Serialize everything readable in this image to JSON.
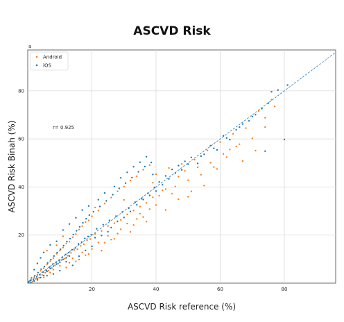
{
  "chart_data": {
    "type": "scatter",
    "title": "ASCVD Risk",
    "panel_label": "a",
    "xlabel": "ASCVD Risk reference (%)",
    "ylabel": "ASCVD Risk Binah (%)",
    "xlim": [
      0,
      96
    ],
    "ylim": [
      0,
      97
    ],
    "xticks": [
      20,
      40,
      60,
      80
    ],
    "yticks": [
      20,
      40,
      60,
      80
    ],
    "grid": true,
    "legend_position": "top-left",
    "annotation": "r= 0.925",
    "identity_line": true,
    "series": [
      {
        "name": "Android",
        "color": "#ff7f0e",
        "points": [
          [
            0.5,
            0.8
          ],
          [
            1,
            1.5
          ],
          [
            1.5,
            0.6
          ],
          [
            2,
            2.5
          ],
          [
            2.5,
            1.8
          ],
          [
            3,
            3.5
          ],
          [
            3.5,
            2.2
          ],
          [
            4,
            5.1
          ],
          [
            4.5,
            3.4
          ],
          [
            5,
            6.2
          ],
          [
            5.5,
            4.3
          ],
          [
            6,
            7.8
          ],
          [
            6.5,
            5.2
          ],
          [
            7,
            9.1
          ],
          [
            7.5,
            6.3
          ],
          [
            8,
            10.4
          ],
          [
            8.5,
            7.4
          ],
          [
            9,
            12.2
          ],
          [
            9.5,
            8.1
          ],
          [
            10,
            13.5
          ],
          [
            10.5,
            9.6
          ],
          [
            11,
            14.8
          ],
          [
            11.5,
            10.2
          ],
          [
            12,
            16.5
          ],
          [
            12.5,
            11.4
          ],
          [
            13,
            17.2
          ],
          [
            13.5,
            12.6
          ],
          [
            14,
            19.1
          ],
          [
            14.5,
            13.8
          ],
          [
            15,
            20.4
          ],
          [
            15.5,
            14.1
          ],
          [
            16,
            22.3
          ],
          [
            16.5,
            15.5
          ],
          [
            17,
            23.7
          ],
          [
            17.5,
            16.2
          ],
          [
            18,
            25.4
          ],
          [
            18.5,
            17.8
          ],
          [
            19,
            26.1
          ],
          [
            19.5,
            18.3
          ],
          [
            20,
            27.8
          ],
          [
            21,
            20.5
          ],
          [
            22,
            30.2
          ],
          [
            23,
            21.7
          ],
          [
            24,
            33.1
          ],
          [
            25,
            23.8
          ],
          [
            26,
            35.6
          ],
          [
            27,
            24.9
          ],
          [
            28,
            38.2
          ],
          [
            29,
            26.3
          ],
          [
            30,
            40.1
          ],
          [
            31,
            28.6
          ],
          [
            32,
            42.7
          ],
          [
            33,
            30.2
          ],
          [
            34,
            44.5
          ],
          [
            35,
            31.8
          ],
          [
            36,
            47.2
          ],
          [
            37,
            33.4
          ],
          [
            38,
            49.1
          ],
          [
            39,
            35.7
          ],
          [
            40,
            45.3
          ],
          [
            42,
            38.6
          ],
          [
            44,
            47.9
          ],
          [
            46,
            40.2
          ],
          [
            48,
            49.6
          ],
          [
            50,
            42.8
          ],
          [
            52,
            51.4
          ],
          [
            54,
            45.1
          ],
          [
            56,
            55.2
          ],
          [
            58,
            48.3
          ],
          [
            60,
            58.7
          ],
          [
            62,
            52.4
          ],
          [
            64,
            62.1
          ],
          [
            66,
            57.8
          ],
          [
            68,
            64.5
          ],
          [
            70,
            60.2
          ],
          [
            72,
            71.6
          ],
          [
            74,
            64.9
          ],
          [
            76,
            76.3
          ],
          [
            77,
            73.5
          ],
          [
            6,
            13.5
          ],
          [
            9,
            15.8
          ],
          [
            11,
            19.5
          ],
          [
            13,
            8.5
          ],
          [
            16,
            9.8
          ],
          [
            19,
            12.1
          ],
          [
            21,
            31.5
          ],
          [
            24,
            16.8
          ],
          [
            27,
            18.4
          ],
          [
            30,
            34.6
          ],
          [
            33,
            24.2
          ],
          [
            36,
            27.5
          ],
          [
            39,
            41.8
          ],
          [
            43,
            30.4
          ],
          [
            47,
            34.9
          ],
          [
            51,
            38.2
          ],
          [
            55,
            40.6
          ],
          [
            59,
            47.5
          ],
          [
            63,
            55.6
          ],
          [
            67,
            50.8
          ],
          [
            71,
            55.1
          ],
          [
            3,
            1.2
          ],
          [
            5,
            2.4
          ],
          [
            7,
            4.3
          ],
          [
            8,
            5.6
          ],
          [
            10,
            7.2
          ],
          [
            12,
            6.5
          ],
          [
            14,
            10.3
          ],
          [
            15,
            9.1
          ],
          [
            17,
            12.8
          ],
          [
            18,
            11.6
          ],
          [
            20,
            14.2
          ],
          [
            22,
            16.9
          ],
          [
            23,
            13.5
          ],
          [
            25,
            19.7
          ],
          [
            26,
            18.1
          ],
          [
            28,
            20.6
          ],
          [
            29,
            22.4
          ],
          [
            31,
            24.8
          ],
          [
            32,
            21.3
          ],
          [
            34,
            26.7
          ],
          [
            35,
            28.9
          ],
          [
            37,
            25.6
          ],
          [
            38,
            30.8
          ],
          [
            40,
            32.5
          ],
          [
            41,
            36.4
          ],
          [
            43,
            39.1
          ],
          [
            45,
            37.2
          ],
          [
            47,
            44.3
          ],
          [
            49,
            46.7
          ],
          [
            50,
            35.9
          ],
          [
            53,
            48.2
          ],
          [
            57,
            50.1
          ],
          [
            61,
            53.7
          ],
          [
            65,
            56.9
          ],
          [
            74,
            68.8
          ]
        ]
      },
      {
        "name": "iOS",
        "color": "#1f77b4",
        "points": [
          [
            0.3,
            0.5
          ],
          [
            0.8,
            1.1
          ],
          [
            1.2,
            2.2
          ],
          [
            1.8,
            1.4
          ],
          [
            2.2,
            3.1
          ],
          [
            2.8,
            2.6
          ],
          [
            3.2,
            4.4
          ],
          [
            3.8,
            3.5
          ],
          [
            4.2,
            5.8
          ],
          [
            4.8,
            4.6
          ],
          [
            5.2,
            6.9
          ],
          [
            5.8,
            5.3
          ],
          [
            6.2,
            8.4
          ],
          [
            6.8,
            6.7
          ],
          [
            7.2,
            9.8
          ],
          [
            7.8,
            7.9
          ],
          [
            8.2,
            11.3
          ],
          [
            8.8,
            8.6
          ],
          [
            9.2,
            12.7
          ],
          [
            9.8,
            9.4
          ],
          [
            10.2,
            14.1
          ],
          [
            10.8,
            10.8
          ],
          [
            11.2,
            15.6
          ],
          [
            11.8,
            11.9
          ],
          [
            12.2,
            17.3
          ],
          [
            12.8,
            12.7
          ],
          [
            13.2,
            18.5
          ],
          [
            13.8,
            13.9
          ],
          [
            14.2,
            20.2
          ],
          [
            14.8,
            14.6
          ],
          [
            15.2,
            21.8
          ],
          [
            15.8,
            16.3
          ],
          [
            16.2,
            23.4
          ],
          [
            16.8,
            17.1
          ],
          [
            17.2,
            25.1
          ],
          [
            17.8,
            18.6
          ],
          [
            18.2,
            26.8
          ],
          [
            18.8,
            19.4
          ],
          [
            19.2,
            28.3
          ],
          [
            19.8,
            20.1
          ],
          [
            20.5,
            29.7
          ],
          [
            21.5,
            22.6
          ],
          [
            22.5,
            31.9
          ],
          [
            23.5,
            24.3
          ],
          [
            24.5,
            34.2
          ],
          [
            25.5,
            26.1
          ],
          [
            26.5,
            36.8
          ],
          [
            27.5,
            27.9
          ],
          [
            28.5,
            39.4
          ],
          [
            29.5,
            29.6
          ],
          [
            30.5,
            41.6
          ],
          [
            31.5,
            31.2
          ],
          [
            32.5,
            43.9
          ],
          [
            33.5,
            33.7
          ],
          [
            34.5,
            46.3
          ],
          [
            35.5,
            35.1
          ],
          [
            36.5,
            48.5
          ],
          [
            37.5,
            37.4
          ],
          [
            38.5,
            50.2
          ],
          [
            39.5,
            39.8
          ],
          [
            41,
            42.1
          ],
          [
            43,
            44.6
          ],
          [
            45,
            47.3
          ],
          [
            47,
            48.9
          ],
          [
            49,
            50.7
          ],
          [
            51,
            52.3
          ],
          [
            53,
            49.8
          ],
          [
            55,
            53.6
          ],
          [
            57,
            57.2
          ],
          [
            59,
            55.4
          ],
          [
            61,
            61.3
          ],
          [
            63,
            59.7
          ],
          [
            65,
            63.8
          ],
          [
            67,
            66.2
          ],
          [
            69,
            67.5
          ],
          [
            71,
            70.1
          ],
          [
            73,
            72.6
          ],
          [
            75,
            74.9
          ],
          [
            76,
            79.6
          ],
          [
            78,
            80.3
          ],
          [
            80,
            59.8
          ],
          [
            74,
            54.9
          ],
          [
            81,
            82.4
          ],
          [
            2,
            5.6
          ],
          [
            3,
            8.2
          ],
          [
            4,
            10.5
          ],
          [
            5,
            12.8
          ],
          [
            6,
            3.1
          ],
          [
            7,
            15.9
          ],
          [
            8,
            3.8
          ],
          [
            9,
            17.4
          ],
          [
            10,
            5.2
          ],
          [
            11,
            22.1
          ],
          [
            12,
            8.9
          ],
          [
            13,
            24.6
          ],
          [
            14,
            7.4
          ],
          [
            15,
            27.2
          ],
          [
            16,
            11.2
          ],
          [
            17,
            30.4
          ],
          [
            18,
            13.6
          ],
          [
            19,
            32.1
          ],
          [
            20,
            15.3
          ],
          [
            21,
            18.9
          ],
          [
            22,
            34.7
          ],
          [
            23,
            19.8
          ],
          [
            24,
            37.5
          ],
          [
            25,
            21.4
          ],
          [
            26,
            23.1
          ],
          [
            27,
            40.2
          ],
          [
            28,
            25.7
          ],
          [
            29,
            43.8
          ],
          [
            30,
            27.3
          ],
          [
            31,
            46.1
          ],
          [
            32,
            29.8
          ],
          [
            33,
            48.4
          ],
          [
            34,
            32.6
          ],
          [
            35,
            50.3
          ],
          [
            36,
            34.8
          ],
          [
            37,
            52.6
          ],
          [
            38,
            36.5
          ],
          [
            39,
            45.2
          ],
          [
            40,
            38.3
          ],
          [
            42,
            40.9
          ],
          [
            44,
            43.4
          ],
          [
            46,
            45.8
          ],
          [
            48,
            47.1
          ],
          [
            50,
            49.5
          ],
          [
            54,
            52.8
          ],
          [
            58,
            56.1
          ],
          [
            62,
            60.4
          ],
          [
            66,
            64.9
          ],
          [
            70,
            69.3
          ],
          [
            1,
            0.3
          ],
          [
            2,
            0.9
          ],
          [
            3,
            1.7
          ],
          [
            4,
            2.3
          ],
          [
            5,
            3.2
          ],
          [
            6,
            4.9
          ],
          [
            7,
            6.1
          ],
          [
            8,
            7.1
          ],
          [
            9,
            7.9
          ],
          [
            10,
            8.7
          ],
          [
            11,
            9.9
          ],
          [
            12,
            10.5
          ],
          [
            13,
            11.3
          ]
        ]
      }
    ]
  }
}
